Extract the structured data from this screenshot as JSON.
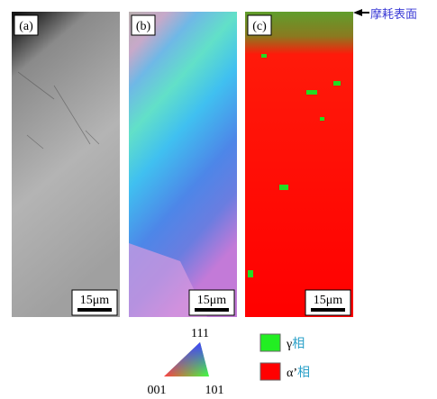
{
  "panels": [
    {
      "label": "(a)",
      "scale": "15μm"
    },
    {
      "label": "(b)",
      "scale": "15μm"
    },
    {
      "label": "(c)",
      "scale": "15μm"
    }
  ],
  "annotation": "摩耗表面",
  "ipf_key": {
    "top": "111",
    "left": "001",
    "right": "101"
  },
  "legend": [
    {
      "symbol": "γ",
      "phase": "相"
    },
    {
      "symbol": "α’",
      "phase": "相"
    }
  ]
}
